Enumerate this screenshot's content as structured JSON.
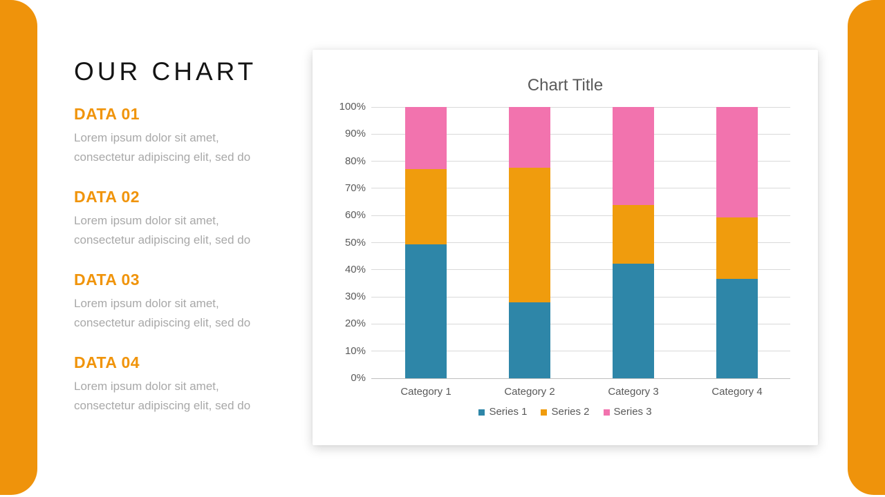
{
  "slide": {
    "title": "OUR CHART",
    "accent_color": "#EF930B",
    "heading_color": "#F0940B",
    "body_text_color": "#A8A8A8",
    "sections": [
      {
        "label": "DATA 01",
        "lines": [
          "Lorem ipsum dolor sit amet,",
          "consectetur adipiscing elit, sed do"
        ]
      },
      {
        "label": "DATA 02",
        "lines": [
          "Lorem ipsum dolor sit amet,",
          "consectetur adipiscing elit, sed do"
        ]
      },
      {
        "label": "DATA 03",
        "lines": [
          "Lorem ipsum dolor sit amet,",
          "consectetur adipiscing elit, sed do"
        ]
      },
      {
        "label": "DATA 04",
        "lines": [
          "Lorem ipsum dolor sit amet,",
          "consectetur adipiscing elit, sed do"
        ]
      }
    ]
  },
  "chart_data": {
    "type": "bar",
    "stacked": true,
    "percent_stacked": true,
    "title": "Chart Title",
    "categories": [
      "Category 1",
      "Category 2",
      "Category 3",
      "Category 4"
    ],
    "series": [
      {
        "name": "Series 1",
        "color": "#2E86A8",
        "values": [
          4.3,
          2.5,
          3.5,
          4.5
        ]
      },
      {
        "name": "Series 2",
        "color": "#F09C0D",
        "values": [
          2.4,
          4.4,
          1.8,
          2.8
        ]
      },
      {
        "name": "Series 3",
        "color": "#F273AE",
        "values": [
          2.0,
          2.0,
          3.0,
          5.0
        ]
      }
    ],
    "stack_percentages": [
      {
        "category": "Category 1",
        "series_pct": [
          49.4,
          27.6,
          23.0
        ]
      },
      {
        "category": "Category 2",
        "series_pct": [
          28.1,
          49.4,
          22.5
        ]
      },
      {
        "category": "Category 3",
        "series_pct": [
          42.2,
          21.7,
          36.1
        ]
      },
      {
        "category": "Category 4",
        "series_pct": [
          36.6,
          22.8,
          40.6
        ]
      }
    ],
    "y_ticks": [
      "0%",
      "10%",
      "20%",
      "30%",
      "40%",
      "50%",
      "60%",
      "70%",
      "80%",
      "90%",
      "100%"
    ],
    "ylim": [
      0,
      100
    ],
    "grid": true,
    "gridline_color": "#D9D9D9",
    "axis_line_color": "#BFBFBF",
    "label_color": "#595959",
    "legend_position": "bottom"
  }
}
